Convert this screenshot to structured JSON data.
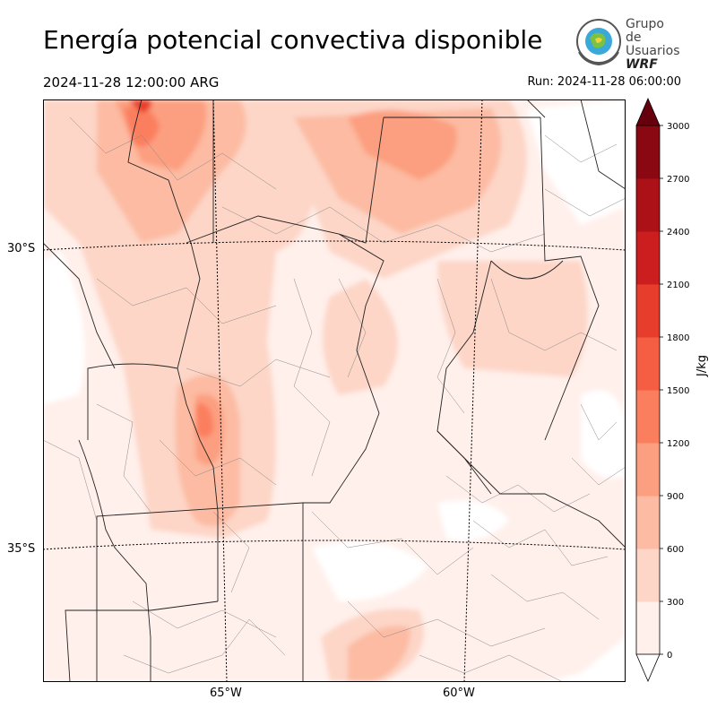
{
  "header": {
    "title": "Energía potencial convectiva disponible",
    "valid_time": "2024-11-28 12:00:00 ARG",
    "run_time": "Run: 2024-11-28 06:00:00"
  },
  "logo": {
    "line1": "Grupo de",
    "line2": "Usuarios",
    "line3": "WRF"
  },
  "map": {
    "lat_labels": [
      "30°S",
      "35°S"
    ],
    "lon_labels": [
      "65°W",
      "60°W"
    ],
    "field": "CAPE",
    "colors": {
      "borders": "#000000",
      "departments": "#888888",
      "graticule": "#000000"
    }
  },
  "colorbar": {
    "unit": "J/kg",
    "ticks": [
      "0",
      "300",
      "600",
      "900",
      "1200",
      "1500",
      "1800",
      "2100",
      "2400",
      "2700",
      "3000"
    ],
    "colors": [
      "#fff0eb",
      "#fdd6c7",
      "#fcbba2",
      "#fc9f80",
      "#fb7f5f",
      "#f55e43",
      "#e73d2c",
      "#cd1e1f",
      "#ad1118",
      "#8a0811",
      "#67000d"
    ],
    "extend": "both"
  }
}
